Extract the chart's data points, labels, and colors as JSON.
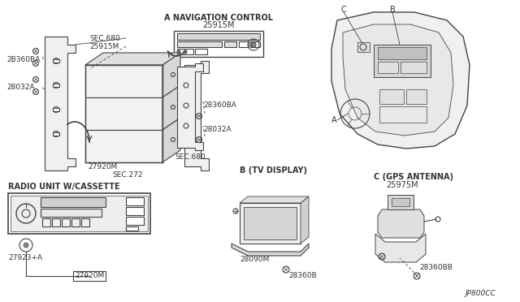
{
  "bg_color": "#f5f5f0",
  "line_color": "#444444",
  "text_color": "#333333",
  "diagram_code": "JP800CC",
  "labels": {
    "nav_control_title": "A NAVIGATION CONTROL",
    "nav_control_part": "25915M",
    "radio_title": "RADIO UNIT W/CASSETTE",
    "tv_title": "B (TV DISPLAY)",
    "gps_title": "C (GPS ANTENNA)",
    "gps_part": "25975M",
    "sec680_top": "SEC.680",
    "part_25915m": "25915M",
    "sec272": "SEC.272",
    "sec680_bot": "SEC.680",
    "part_2b360ba": "2B360BA",
    "part_28032a_l": "28032A",
    "part_27920m": "27920M",
    "part_28360ba": "28360BA",
    "part_28032a_r": "28032A",
    "part_27923a": "27923+A",
    "part_27920m_b": "27920M",
    "part_28090m": "28090M",
    "part_28360b": "28360B",
    "part_28360bb": "28360BB",
    "label_a": "A",
    "label_b": "B",
    "label_c": "C"
  }
}
